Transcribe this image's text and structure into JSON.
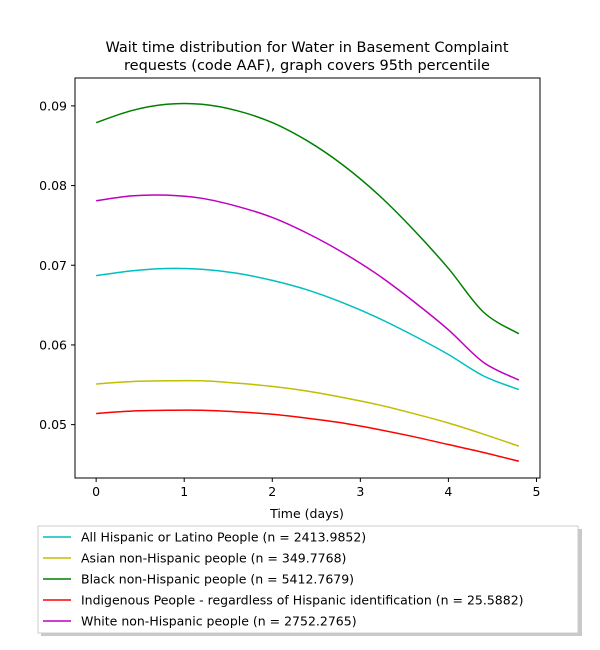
{
  "chart_data": {
    "type": "line",
    "title_lines": [
      "Wait time distribution  for Water in Basement Complaint",
      "requests (code AAF), graph covers 95th percentile"
    ],
    "xlabel": "Time (days)",
    "ylabel": "",
    "xlim": [
      -0.24,
      5.04
    ],
    "ylim": [
      0.0433,
      0.0935
    ],
    "x_ticks": [
      0,
      1,
      2,
      3,
      4,
      5
    ],
    "y_ticks": [
      0.05,
      0.06,
      0.07,
      0.08,
      0.09
    ],
    "x_tick_labels": [
      "0",
      "1",
      "2",
      "3",
      "4",
      "5"
    ],
    "y_tick_labels": [
      "0.05",
      "0.06",
      "0.07",
      "0.08",
      "0.09"
    ],
    "grid": false,
    "legend_placement": "below plot",
    "series": [
      {
        "name": "All Hispanic or Latino People (n = 2413.9852)",
        "color": "#00bfbf",
        "x": [
          0,
          0.4,
          0.8,
          1.2,
          1.6,
          2.0,
          2.4,
          2.8,
          3.2,
          3.6,
          4.0,
          4.4,
          4.8
        ],
        "y": [
          0.0687,
          0.0693,
          0.0696,
          0.0695,
          0.069,
          0.0681,
          0.0669,
          0.0653,
          0.0634,
          0.0612,
          0.0588,
          0.0561,
          0.0544
        ]
      },
      {
        "name": "Asian non-Hispanic people (n = 349.7768)",
        "color": "#bfbf00",
        "x": [
          0,
          0.4,
          0.8,
          1.2,
          1.6,
          2.0,
          2.4,
          2.8,
          3.2,
          3.6,
          4.0,
          4.4,
          4.8
        ],
        "y": [
          0.0551,
          0.0554,
          0.0555,
          0.0555,
          0.0552,
          0.0548,
          0.0542,
          0.0534,
          0.0525,
          0.0514,
          0.0502,
          0.0488,
          0.0473
        ]
      },
      {
        "name": "Black non-Hispanic people (n = 5412.7679)",
        "color": "#008000",
        "x": [
          0,
          0.4,
          0.8,
          1.2,
          1.6,
          2.0,
          2.4,
          2.8,
          3.2,
          3.6,
          4.0,
          4.4,
          4.8
        ],
        "y": [
          0.0879,
          0.0894,
          0.0902,
          0.0902,
          0.0894,
          0.0879,
          0.0856,
          0.0826,
          0.0789,
          0.0745,
          0.0696,
          0.0641,
          0.0614
        ]
      },
      {
        "name": "Indigenous People - regardless of Hispanic identification (n = 25.5882)",
        "color": "#ff0000",
        "x": [
          0,
          0.4,
          0.8,
          1.2,
          1.6,
          2.0,
          2.4,
          2.8,
          3.2,
          3.6,
          4.0,
          4.4,
          4.8
        ],
        "y": [
          0.0514,
          0.0517,
          0.0518,
          0.0518,
          0.0516,
          0.0513,
          0.0508,
          0.0502,
          0.0494,
          0.0485,
          0.0475,
          0.0465,
          0.0454
        ]
      },
      {
        "name": "White non-Hispanic people (n = 2752.2765)",
        "color": "#bf00bf",
        "x": [
          0,
          0.4,
          0.8,
          1.2,
          1.6,
          2.0,
          2.4,
          2.8,
          3.2,
          3.6,
          4.0,
          4.4,
          4.8
        ],
        "y": [
          0.0781,
          0.0787,
          0.0788,
          0.0784,
          0.0774,
          0.076,
          0.074,
          0.0716,
          0.0688,
          0.0655,
          0.0619,
          0.0578,
          0.0556
        ]
      }
    ]
  }
}
